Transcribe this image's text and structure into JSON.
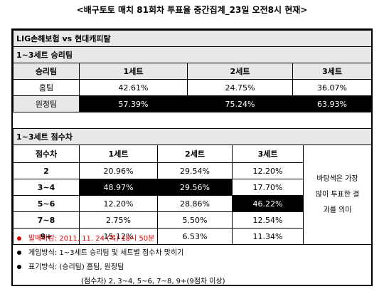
{
  "title": "<배구토토 매치 81회차 투표율 중간집계_23일 오전8시 현재>",
  "match": "LIG손해보험 vs 현대캐피탈",
  "winner_section": {
    "title": "1~3세트 승리팀",
    "header": [
      "승리팀",
      "1세트",
      "2세트",
      "3세트"
    ],
    "rows": [
      [
        "홈팀",
        "42.61%",
        "24.75%",
        "36.07%"
      ],
      [
        "원정팀",
        "57.39%",
        "75.24%",
        "63.93%"
      ]
    ]
  },
  "margin_section": {
    "title": "1~3세트 점수차",
    "header": [
      "점수차",
      "1세트",
      "2세트",
      "3세트"
    ],
    "rows": [
      [
        "2",
        "20.96%",
        "29.54%",
        "12.20%"
      ],
      [
        "3~4",
        "48.97%",
        "29.56%",
        "17.70%"
      ],
      [
        "5~6",
        "12.20%",
        "28.86%",
        "46.22%"
      ],
      [
        "7~8",
        "2.75%",
        "5.50%",
        "12.54%"
      ],
      [
        "9+",
        "15.12%",
        "6.53%",
        "11.34%"
      ]
    ],
    "note": [
      "바탕색은 가장",
      "많이 투표한 결",
      "과를 의미"
    ]
  },
  "notes": [
    "발매마감: 2011. 11. 24 (목) 18시 50분",
    "게임방식: 1~3세트 승리팀 및 세트별 점수차 맞히기",
    "표기방식: (승리팀) 홈팀, 원정팀",
    "(점수차) 2, 3~4, 5~6, 7~8, 9+(9점차 이상)"
  ]
}
